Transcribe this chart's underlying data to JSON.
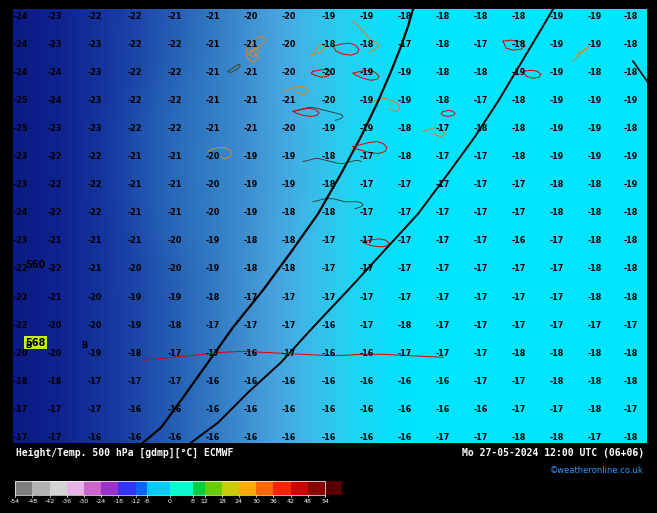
{
  "title_left": "Height/Temp. 500 hPa [gdmp][°C] ECMWF",
  "title_right": "Mo 27-05-2024 12:00 UTC (06+06)",
  "credit": "©weatheronline.co.uk",
  "colorbar_levels": [
    -54,
    -48,
    -42,
    -36,
    -30,
    -24,
    -18,
    -12,
    -8,
    0,
    8,
    12,
    18,
    24,
    30,
    36,
    42,
    48,
    54
  ],
  "colorbar_colors": [
    "#7f7f7f",
    "#b2b2b2",
    "#d4d4d4",
    "#e8b4e8",
    "#cc66cc",
    "#9933cc",
    "#3333ff",
    "#0066ff",
    "#00ccff",
    "#00ffcc",
    "#00cc44",
    "#66cc00",
    "#cccc00",
    "#ffaa00",
    "#ff6600",
    "#ff2200",
    "#cc0000",
    "#880000",
    "#550000"
  ],
  "bg_cyan": "#00e5ff",
  "bg_light_blue": "#4db8e8",
  "bg_med_blue": "#2470b8",
  "bg_dark_blue": "#1040a0",
  "bg_darkest_blue": "#0a2080"
}
